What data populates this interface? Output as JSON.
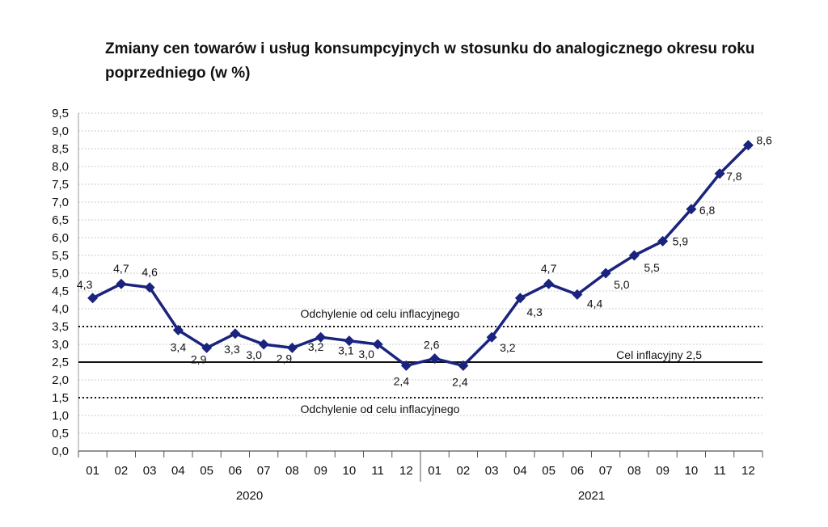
{
  "chart_data": {
    "type": "line",
    "title_line1": "Zmiany cen towarów i usług konsumpcyjnych w stosunku do analogicznego okresu roku",
    "title_line2": "poprzedniego (w %)",
    "ylim": [
      0,
      9.5
    ],
    "y_ticks": [
      "0,0",
      "0,5",
      "1,0",
      "1,5",
      "2,0",
      "2,5",
      "3,0",
      "3,5",
      "4,0",
      "4,5",
      "5,0",
      "5,5",
      "6,0",
      "6,5",
      "7,0",
      "7,5",
      "8,0",
      "8,5",
      "9,0",
      "9,5"
    ],
    "grid": "horizontal dotted",
    "categories": [
      "01",
      "02",
      "03",
      "04",
      "05",
      "06",
      "07",
      "08",
      "09",
      "10",
      "11",
      "12",
      "01",
      "02",
      "03",
      "04",
      "05",
      "06",
      "07",
      "08",
      "09",
      "10",
      "11",
      "12"
    ],
    "year_groups": [
      {
        "label": "2020",
        "start": 0,
        "end": 11
      },
      {
        "label": "2021",
        "start": 12,
        "end": 23
      }
    ],
    "series": [
      {
        "color": "#1a237e",
        "values": [
          4.3,
          4.7,
          4.6,
          3.4,
          2.9,
          3.3,
          3.0,
          2.9,
          3.2,
          3.1,
          3.0,
          2.4,
          2.6,
          2.4,
          3.2,
          4.3,
          4.7,
          4.4,
          5.0,
          5.5,
          5.9,
          6.8,
          7.8,
          8.6
        ],
        "labels": [
          "4,3",
          "4,7",
          "4,6",
          "3,4",
          "2,9",
          "3,3",
          "3,0",
          "2,9",
          "3,2",
          "3,1",
          "3,0",
          "2,4",
          "2,6",
          "2,4",
          "3,2",
          "4,3",
          "4,7",
          "4,4",
          "5,0",
          "5,5",
          "5,9",
          "6,8",
          "7,8",
          "8,6"
        ]
      }
    ],
    "reference_lines": [
      {
        "value": 3.5,
        "style": "dotted",
        "label": "Odchylenie od celu inflacyjnego"
      },
      {
        "value": 2.5,
        "style": "solid",
        "label": "Cel inflacyjny 2,5"
      },
      {
        "value": 1.5,
        "style": "dotted",
        "label": "Odchylenie od celu inflacyjnego"
      }
    ]
  }
}
